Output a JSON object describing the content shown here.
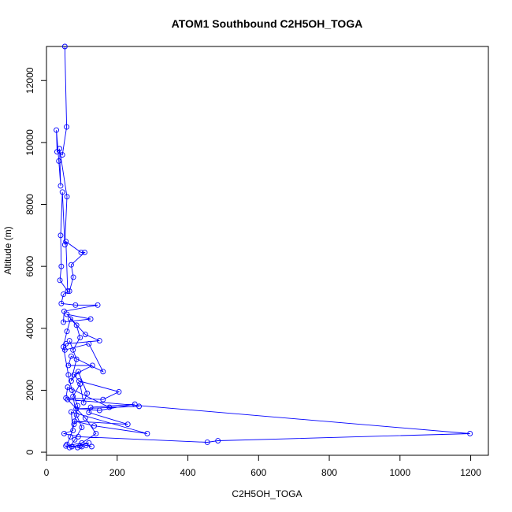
{
  "chart_data": {
    "type": "line",
    "title": "ATOM1 Southbound C2H5OH_TOGA",
    "xlabel": "C2H5OH_TOGA",
    "ylabel": "Altitude (m)",
    "xlim": [
      0,
      1250
    ],
    "ylim": [
      -100,
      13100
    ],
    "x_ticks": [
      0,
      200,
      400,
      600,
      800,
      1000,
      1200
    ],
    "y_ticks": [
      0,
      2000,
      4000,
      6000,
      8000,
      10000,
      12000
    ],
    "grid": false,
    "legend": "none",
    "series_color": "#0000ff",
    "series": [
      {
        "points": [
          [
            52,
            13100
          ],
          [
            57,
            10500
          ],
          [
            45,
            9600
          ],
          [
            30,
            9700
          ],
          [
            28,
            10400
          ],
          [
            35,
            9400
          ],
          [
            40,
            8600
          ],
          [
            37,
            9800
          ],
          [
            58,
            8250
          ],
          [
            52,
            6700
          ],
          [
            45,
            8400
          ],
          [
            40,
            7000
          ],
          [
            42,
            6000
          ],
          [
            38,
            5550
          ],
          [
            60,
            5200
          ],
          [
            55,
            6800
          ],
          [
            98,
            6450
          ],
          [
            108,
            6450
          ],
          [
            70,
            6050
          ],
          [
            76,
            5650
          ],
          [
            65,
            5200
          ],
          [
            48,
            5100
          ],
          [
            42,
            4800
          ],
          [
            82,
            4750
          ],
          [
            145,
            4750
          ],
          [
            50,
            4550
          ],
          [
            48,
            4200
          ],
          [
            125,
            4300
          ],
          [
            58,
            4450
          ],
          [
            110,
            3800
          ],
          [
            150,
            3600
          ],
          [
            55,
            3500
          ],
          [
            52,
            3300
          ],
          [
            120,
            3500
          ],
          [
            160,
            2600
          ],
          [
            70,
            3100
          ],
          [
            62,
            2800
          ],
          [
            130,
            2800
          ],
          [
            78,
            2500
          ],
          [
            92,
            2300
          ],
          [
            205,
            1950
          ],
          [
            160,
            1700
          ],
          [
            55,
            1750
          ],
          [
            60,
            2100
          ],
          [
            178,
            1450
          ],
          [
            262,
            1480
          ],
          [
            84,
            1400
          ],
          [
            150,
            1350
          ],
          [
            250,
            1550
          ],
          [
            125,
            1450
          ],
          [
            120,
            1280
          ],
          [
            230,
            900
          ],
          [
            80,
            1000
          ],
          [
            135,
            850
          ],
          [
            285,
            600
          ],
          [
            70,
            1300
          ],
          [
            75,
            700
          ],
          [
            50,
            600
          ],
          [
            90,
            500
          ],
          [
            455,
            320
          ],
          [
            485,
            370
          ],
          [
            1198,
            600
          ],
          [
            60,
            1700
          ],
          [
            110,
            1100
          ],
          [
            140,
            600
          ],
          [
            100,
            300
          ],
          [
            55,
            200
          ],
          [
            95,
            200
          ],
          [
            120,
            300
          ],
          [
            65,
            150
          ],
          [
            80,
            400
          ],
          [
            100,
            800
          ],
          [
            85,
            1200
          ],
          [
            75,
            1800
          ],
          [
            95,
            2200
          ],
          [
            105,
            1600
          ],
          [
            115,
            1900
          ],
          [
            90,
            2600
          ],
          [
            70,
            2300
          ],
          [
            85,
            3000
          ],
          [
            65,
            3600
          ],
          [
            75,
            3300
          ],
          [
            95,
            3700
          ],
          [
            85,
            4100
          ],
          [
            68,
            4300
          ],
          [
            58,
            3900
          ],
          [
            48,
            3400
          ],
          [
            62,
            2500
          ],
          [
            72,
            2000
          ],
          [
            88,
            1500
          ],
          [
            78,
            900
          ],
          [
            68,
            500
          ],
          [
            58,
            250
          ],
          [
            72,
            180
          ],
          [
            88,
            150
          ],
          [
            100,
            180
          ],
          [
            112,
            220
          ],
          [
            128,
            180
          ]
        ]
      }
    ]
  }
}
